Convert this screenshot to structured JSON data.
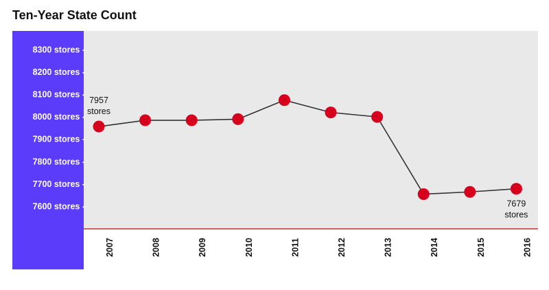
{
  "chart_data": {
    "type": "line",
    "title": "Ten-Year State Count",
    "categories": [
      "2007",
      "2008",
      "2009",
      "2010",
      "2011",
      "2012",
      "2013",
      "2014",
      "2015",
      "2016"
    ],
    "series": [
      {
        "values": [
          7957,
          7985,
          7985,
          7990,
          8075,
          8020,
          8000,
          7655,
          7665,
          7679
        ]
      }
    ],
    "y_ticks": [
      8300,
      8200,
      8100,
      8000,
      7900,
      7800,
      7700,
      7600
    ],
    "y_tick_suffix": " stores -",
    "ylim": [
      7500,
      8350
    ],
    "annotations": [
      {
        "index": 0,
        "lines": [
          "7957",
          "stores"
        ],
        "position": "above"
      },
      {
        "index": 9,
        "lines": [
          "7679",
          "stores"
        ],
        "position": "below"
      }
    ],
    "grid": false,
    "colors": {
      "axis_panel": "#5b3cfb",
      "plot_background": "#e9e9e9",
      "line": "#333333",
      "marker": "#d6001c",
      "baseline": "#c0392b"
    }
  }
}
